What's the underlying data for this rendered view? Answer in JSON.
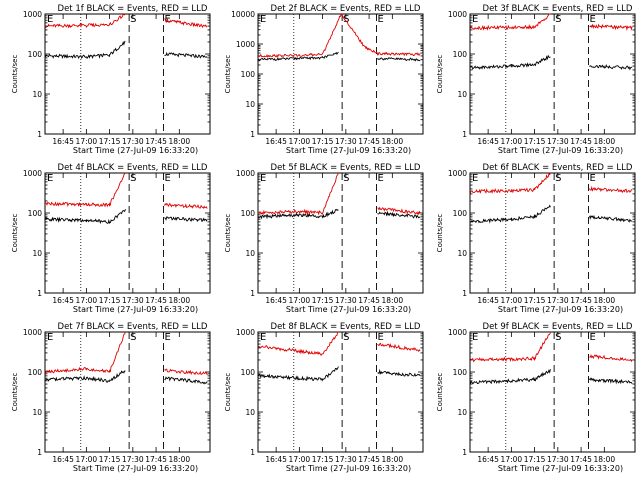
{
  "chart_data": [
    {
      "type": "line",
      "title": "Det 1f BLACK = Events, RED = LLD",
      "xlabel": "Start Time (27-Jul-09 16:33:20)",
      "ylabel": "Counts/sec",
      "x_ticks": [
        "16:45",
        "17:00",
        "17:15",
        "17:30",
        "17:45",
        "18:00"
      ],
      "y_ticks": [
        "1",
        "10",
        "100",
        "1000"
      ],
      "yscale": "log",
      "ylim": [
        1,
        1000
      ],
      "markers": {
        "E": "E",
        "S": "S"
      },
      "series": [
        {
          "color": "#000000",
          "values": [
            [
              16.56,
              90
            ],
            [
              17.0,
              85
            ],
            [
              17.25,
              95
            ],
            [
              17.42,
              200
            ]
          ],
          "values2": [
            [
              17.84,
              100
            ],
            [
              18.3,
              85
            ]
          ]
        },
        {
          "color": "#e00000",
          "values": [
            [
              16.56,
              500
            ],
            [
              17.0,
              520
            ],
            [
              17.25,
              540
            ],
            [
              17.42,
              1000
            ]
          ],
          "values2": [
            [
              17.84,
              700
            ],
            [
              18.3,
              480
            ]
          ]
        }
      ]
    },
    {
      "type": "line",
      "title": "Det 2f BLACK = Events, RED = LLD",
      "xlabel": "Start Time (27-Jul-09 16:33:20)",
      "ylabel": "Counts/sec",
      "x_ticks": [
        "16:45",
        "17:00",
        "17:15",
        "17:30",
        "17:45",
        "18:00"
      ],
      "y_ticks": [
        "1",
        "10",
        "100",
        "1000",
        "10000"
      ],
      "yscale": "log",
      "ylim": [
        1,
        10000
      ],
      "markers": {
        "E": "E",
        "S": "S",
        "C": "E"
      },
      "series": [
        {
          "color": "#000000",
          "values": [
            [
              16.56,
              300
            ],
            [
              17.0,
              330
            ],
            [
              17.25,
              350
            ],
            [
              17.42,
              500
            ]
          ],
          "values2": [
            [
              17.84,
              330
            ],
            [
              18.3,
              300
            ]
          ]
        },
        {
          "color": "#e00000",
          "values": [
            [
              16.56,
              400
            ],
            [
              17.0,
              420
            ],
            [
              17.25,
              450
            ],
            [
              17.45,
              10000
            ],
            [
              17.7,
              800
            ],
            [
              17.84,
              480
            ],
            [
              18.3,
              450
            ]
          ]
        }
      ]
    },
    {
      "type": "line",
      "title": "Det 3f BLACK = Events, RED = LLD",
      "xlabel": "Start Time (27-Jul-09 16:33:20)",
      "ylabel": "Counts/sec",
      "x_ticks": [
        "16:45",
        "17:00",
        "17:15",
        "17:30",
        "17:45",
        "18:00"
      ],
      "y_ticks": [
        "1",
        "10",
        "100",
        "1000"
      ],
      "yscale": "log",
      "ylim": [
        1,
        1000
      ],
      "markers": {
        "E": "E",
        "S": "S"
      },
      "series": [
        {
          "color": "#000000",
          "values": [
            [
              16.56,
              45
            ],
            [
              17.0,
              50
            ],
            [
              17.25,
              55
            ],
            [
              17.42,
              90
            ]
          ],
          "values2": [
            [
              17.84,
              50
            ],
            [
              18.3,
              45
            ]
          ]
        },
        {
          "color": "#e00000",
          "values": [
            [
              16.56,
              450
            ],
            [
              17.0,
              460
            ],
            [
              17.25,
              470
            ],
            [
              17.42,
              1000
            ]
          ],
          "values2": [
            [
              17.84,
              500
            ],
            [
              18.3,
              450
            ]
          ]
        }
      ]
    },
    {
      "type": "line",
      "title": "Det 4f BLACK = Events, RED = LLD",
      "xlabel": "Start Time (27-Jul-09 16:33:20)",
      "ylabel": "Counts/sec",
      "x_ticks": [
        "16:45",
        "17:00",
        "17:15",
        "17:30",
        "17:45",
        "18:00"
      ],
      "y_ticks": [
        "1",
        "10",
        "100",
        "1000"
      ],
      "yscale": "log",
      "ylim": [
        1,
        1000
      ],
      "markers": {
        "E": "E",
        "S": "S"
      },
      "series": [
        {
          "color": "#000000",
          "values": [
            [
              16.56,
              70
            ],
            [
              17.0,
              65
            ],
            [
              17.25,
              60
            ],
            [
              17.42,
              120
            ]
          ],
          "values2": [
            [
              17.84,
              75
            ],
            [
              18.3,
              65
            ]
          ]
        },
        {
          "color": "#e00000",
          "values": [
            [
              16.56,
              170
            ],
            [
              17.0,
              165
            ],
            [
              17.25,
              160
            ],
            [
              17.42,
              1000
            ]
          ],
          "values2": [
            [
              17.84,
              160
            ],
            [
              18.3,
              140
            ]
          ]
        }
      ]
    },
    {
      "type": "line",
      "title": "Det 5f BLACK = Events, RED = LLD",
      "xlabel": "Start Time (27-Jul-09 16:33:20)",
      "ylabel": "Counts/sec",
      "x_ticks": [
        "16:45",
        "17:00",
        "17:15",
        "17:30",
        "17:45",
        "18:00"
      ],
      "y_ticks": [
        "1",
        "10",
        "100",
        "1000"
      ],
      "yscale": "log",
      "ylim": [
        1,
        1000
      ],
      "markers": {
        "E": "E",
        "S": "S"
      },
      "series": [
        {
          "color": "#000000",
          "values": [
            [
              16.56,
              80
            ],
            [
              17.0,
              90
            ],
            [
              17.25,
              80
            ],
            [
              17.42,
              120
            ]
          ],
          "values2": [
            [
              17.84,
              100
            ],
            [
              18.3,
              80
            ]
          ]
        },
        {
          "color": "#e00000",
          "values": [
            [
              16.56,
              100
            ],
            [
              17.0,
              110
            ],
            [
              17.25,
              100
            ],
            [
              17.42,
              1000
            ]
          ],
          "values2": [
            [
              17.84,
              130
            ],
            [
              18.3,
              100
            ]
          ]
        }
      ]
    },
    {
      "type": "line",
      "title": "Det 6f BLACK = Events, RED = LLD",
      "xlabel": "Start Time (27-Jul-09 16:33:20)",
      "ylabel": "Counts/sec",
      "x_ticks": [
        "16:45",
        "17:00",
        "17:15",
        "17:30",
        "17:45",
        "18:00"
      ],
      "y_ticks": [
        "1",
        "10",
        "100",
        "1000"
      ],
      "yscale": "log",
      "ylim": [
        1,
        1000
      ],
      "markers": {
        "E": "E",
        "S": "S"
      },
      "series": [
        {
          "color": "#000000",
          "values": [
            [
              16.56,
              60
            ],
            [
              17.0,
              70
            ],
            [
              17.25,
              80
            ],
            [
              17.42,
              150
            ]
          ],
          "values2": [
            [
              17.84,
              80
            ],
            [
              18.3,
              65
            ]
          ]
        },
        {
          "color": "#e00000",
          "values": [
            [
              16.56,
              350
            ],
            [
              17.0,
              360
            ],
            [
              17.25,
              380
            ],
            [
              17.42,
              1000
            ]
          ],
          "values2": [
            [
              17.84,
              400
            ],
            [
              18.3,
              350
            ]
          ]
        }
      ]
    },
    {
      "type": "line",
      "title": "Det 7f BLACK = Events, RED = LLD",
      "xlabel": "Start Time (27-Jul-09 16:33:20)",
      "ylabel": "Counts/sec",
      "x_ticks": [
        "16:45",
        "17:00",
        "17:15",
        "17:30",
        "17:45",
        "18:00"
      ],
      "y_ticks": [
        "1",
        "10",
        "100",
        "1000"
      ],
      "yscale": "log",
      "ylim": [
        1,
        1000
      ],
      "markers": {
        "E": "E",
        "S": "S"
      },
      "series": [
        {
          "color": "#000000",
          "values": [
            [
              16.56,
              65
            ],
            [
              17.0,
              70
            ],
            [
              17.25,
              60
            ],
            [
              17.42,
              110
            ]
          ],
          "values2": [
            [
              17.84,
              70
            ],
            [
              18.3,
              55
            ]
          ]
        },
        {
          "color": "#e00000",
          "values": [
            [
              16.56,
              100
            ],
            [
              17.0,
              120
            ],
            [
              17.25,
              100
            ],
            [
              17.42,
              1000
            ]
          ],
          "values2": [
            [
              17.84,
              110
            ],
            [
              18.3,
              90
            ]
          ]
        }
      ]
    },
    {
      "type": "line",
      "title": "Det 8f BLACK = Events, RED = LLD",
      "xlabel": "Start Time (27-Jul-09 16:33:20)",
      "ylabel": "Counts/sec",
      "x_ticks": [
        "16:45",
        "17:00",
        "17:15",
        "17:30",
        "17:45",
        "18:00"
      ],
      "y_ticks": [
        "1",
        "10",
        "100",
        "1000"
      ],
      "yscale": "log",
      "ylim": [
        1,
        1000
      ],
      "markers": {
        "E": "E",
        "S": "S"
      },
      "series": [
        {
          "color": "#000000",
          "values": [
            [
              16.56,
              80
            ],
            [
              17.0,
              70
            ],
            [
              17.25,
              65
            ],
            [
              17.42,
              130
            ]
          ],
          "values2": [
            [
              17.84,
              100
            ],
            [
              18.3,
              80
            ]
          ]
        },
        {
          "color": "#e00000",
          "values": [
            [
              16.56,
              450
            ],
            [
              17.0,
              330
            ],
            [
              17.25,
              280
            ],
            [
              17.42,
              1000
            ]
          ],
          "values2": [
            [
              17.84,
              500
            ],
            [
              18.3,
              350
            ]
          ]
        }
      ]
    },
    {
      "type": "line",
      "title": "Det 9f BLACK = Events, RED = LLD",
      "xlabel": "Start Time (27-Jul-09 16:33:20)",
      "ylabel": "Counts/sec",
      "x_ticks": [
        "16:45",
        "17:00",
        "17:15",
        "17:30",
        "17:45",
        "18:00"
      ],
      "y_ticks": [
        "1",
        "10",
        "100",
        "1000"
      ],
      "yscale": "log",
      "ylim": [
        1,
        1000
      ],
      "markers": {
        "E": "E",
        "S": "S"
      },
      "series": [
        {
          "color": "#000000",
          "values": [
            [
              16.56,
              55
            ],
            [
              17.0,
              60
            ],
            [
              17.25,
              65
            ],
            [
              17.42,
              110
            ]
          ],
          "values2": [
            [
              17.84,
              65
            ],
            [
              18.3,
              55
            ]
          ]
        },
        {
          "color": "#e00000",
          "values": [
            [
              16.56,
              200
            ],
            [
              17.0,
              210
            ],
            [
              17.25,
              220
            ],
            [
              17.42,
              1000
            ]
          ],
          "values2": [
            [
              17.84,
              250
            ],
            [
              18.3,
              200
            ]
          ]
        }
      ]
    }
  ]
}
